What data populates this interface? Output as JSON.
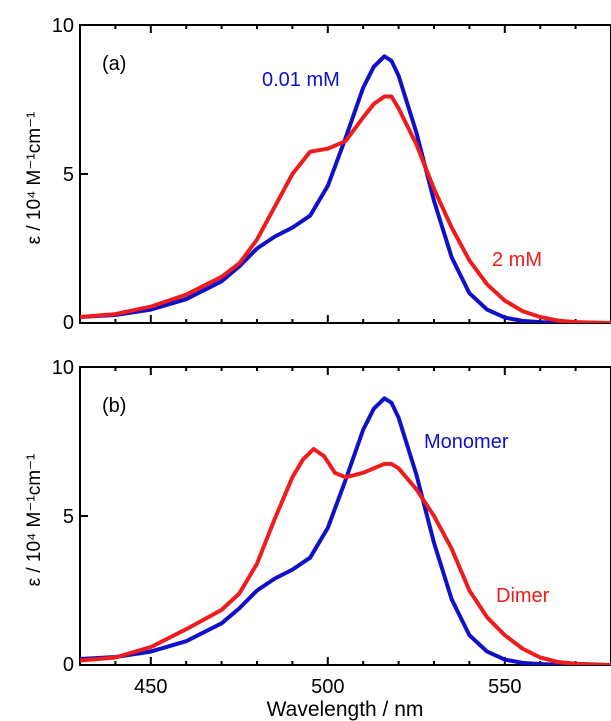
{
  "chart_data": [
    {
      "type": "line",
      "panel_label": "(a)",
      "xlabel": "",
      "ylabel": "ε / 10⁴ M⁻¹cm⁻¹",
      "xlim": [
        430,
        580
      ],
      "ylim": [
        0,
        10
      ],
      "x_ticks": [
        450,
        500,
        550
      ],
      "y_ticks": [
        0,
        5,
        10
      ],
      "grid": false,
      "legend": "inline labels",
      "series": [
        {
          "name": "0.01 mM",
          "color": "#1010c8",
          "x": [
            430,
            440,
            450,
            460,
            470,
            475,
            480,
            485,
            490,
            495,
            500,
            505,
            510,
            513,
            516,
            518,
            520,
            525,
            530,
            535,
            540,
            545,
            550,
            555,
            560,
            565,
            570,
            580
          ],
          "y": [
            0.2,
            0.27,
            0.45,
            0.8,
            1.4,
            1.9,
            2.5,
            2.9,
            3.2,
            3.6,
            4.6,
            6.2,
            7.9,
            8.6,
            8.95,
            8.8,
            8.3,
            6.4,
            4.1,
            2.2,
            1.0,
            0.45,
            0.18,
            0.07,
            0.03,
            0.01,
            0.0,
            0.0
          ]
        },
        {
          "name": "2 mM",
          "color": "#ee1c1c",
          "x": [
            430,
            440,
            450,
            460,
            470,
            475,
            480,
            485,
            490,
            495,
            500,
            505,
            510,
            513,
            516,
            518,
            520,
            525,
            530,
            535,
            540,
            545,
            550,
            555,
            560,
            565,
            570,
            580
          ],
          "y": [
            0.2,
            0.3,
            0.55,
            0.95,
            1.55,
            2.0,
            2.8,
            3.9,
            5.0,
            5.75,
            5.85,
            6.1,
            6.9,
            7.35,
            7.6,
            7.6,
            7.2,
            6.0,
            4.5,
            3.2,
            2.1,
            1.3,
            0.75,
            0.4,
            0.2,
            0.08,
            0.03,
            0.0
          ]
        }
      ]
    },
    {
      "type": "line",
      "panel_label": "(b)",
      "xlabel": "Wavelength / nm",
      "ylabel": "ε / 10⁴ M⁻¹cm⁻¹",
      "xlim": [
        430,
        580
      ],
      "ylim": [
        0,
        10
      ],
      "x_ticks": [
        450,
        500,
        550
      ],
      "y_ticks": [
        0,
        5,
        10
      ],
      "grid": false,
      "legend": "inline labels",
      "series": [
        {
          "name": "Monomer",
          "color": "#1010c8",
          "x": [
            430,
            440,
            450,
            460,
            470,
            475,
            480,
            485,
            490,
            495,
            500,
            505,
            510,
            513,
            516,
            518,
            520,
            525,
            530,
            535,
            540,
            545,
            550,
            555,
            560,
            565,
            570,
            580
          ],
          "y": [
            0.2,
            0.27,
            0.45,
            0.8,
            1.4,
            1.9,
            2.5,
            2.9,
            3.2,
            3.6,
            4.6,
            6.2,
            7.9,
            8.6,
            8.95,
            8.8,
            8.3,
            6.4,
            4.1,
            2.2,
            1.0,
            0.45,
            0.18,
            0.07,
            0.03,
            0.01,
            0.0,
            0.0
          ]
        },
        {
          "name": "Dimer",
          "color": "#ee1c1c",
          "x": [
            430,
            440,
            450,
            460,
            470,
            475,
            480,
            485,
            490,
            493,
            496,
            499,
            502,
            505,
            510,
            513,
            516,
            518,
            520,
            525,
            530,
            535,
            540,
            545,
            550,
            555,
            560,
            565,
            570,
            580
          ],
          "y": [
            0.15,
            0.25,
            0.6,
            1.2,
            1.85,
            2.4,
            3.4,
            4.9,
            6.3,
            6.9,
            7.25,
            7.0,
            6.45,
            6.3,
            6.45,
            6.6,
            6.75,
            6.75,
            6.6,
            5.9,
            5.0,
            3.9,
            2.5,
            1.6,
            1.0,
            0.55,
            0.25,
            0.1,
            0.04,
            0.0
          ]
        }
      ]
    }
  ]
}
